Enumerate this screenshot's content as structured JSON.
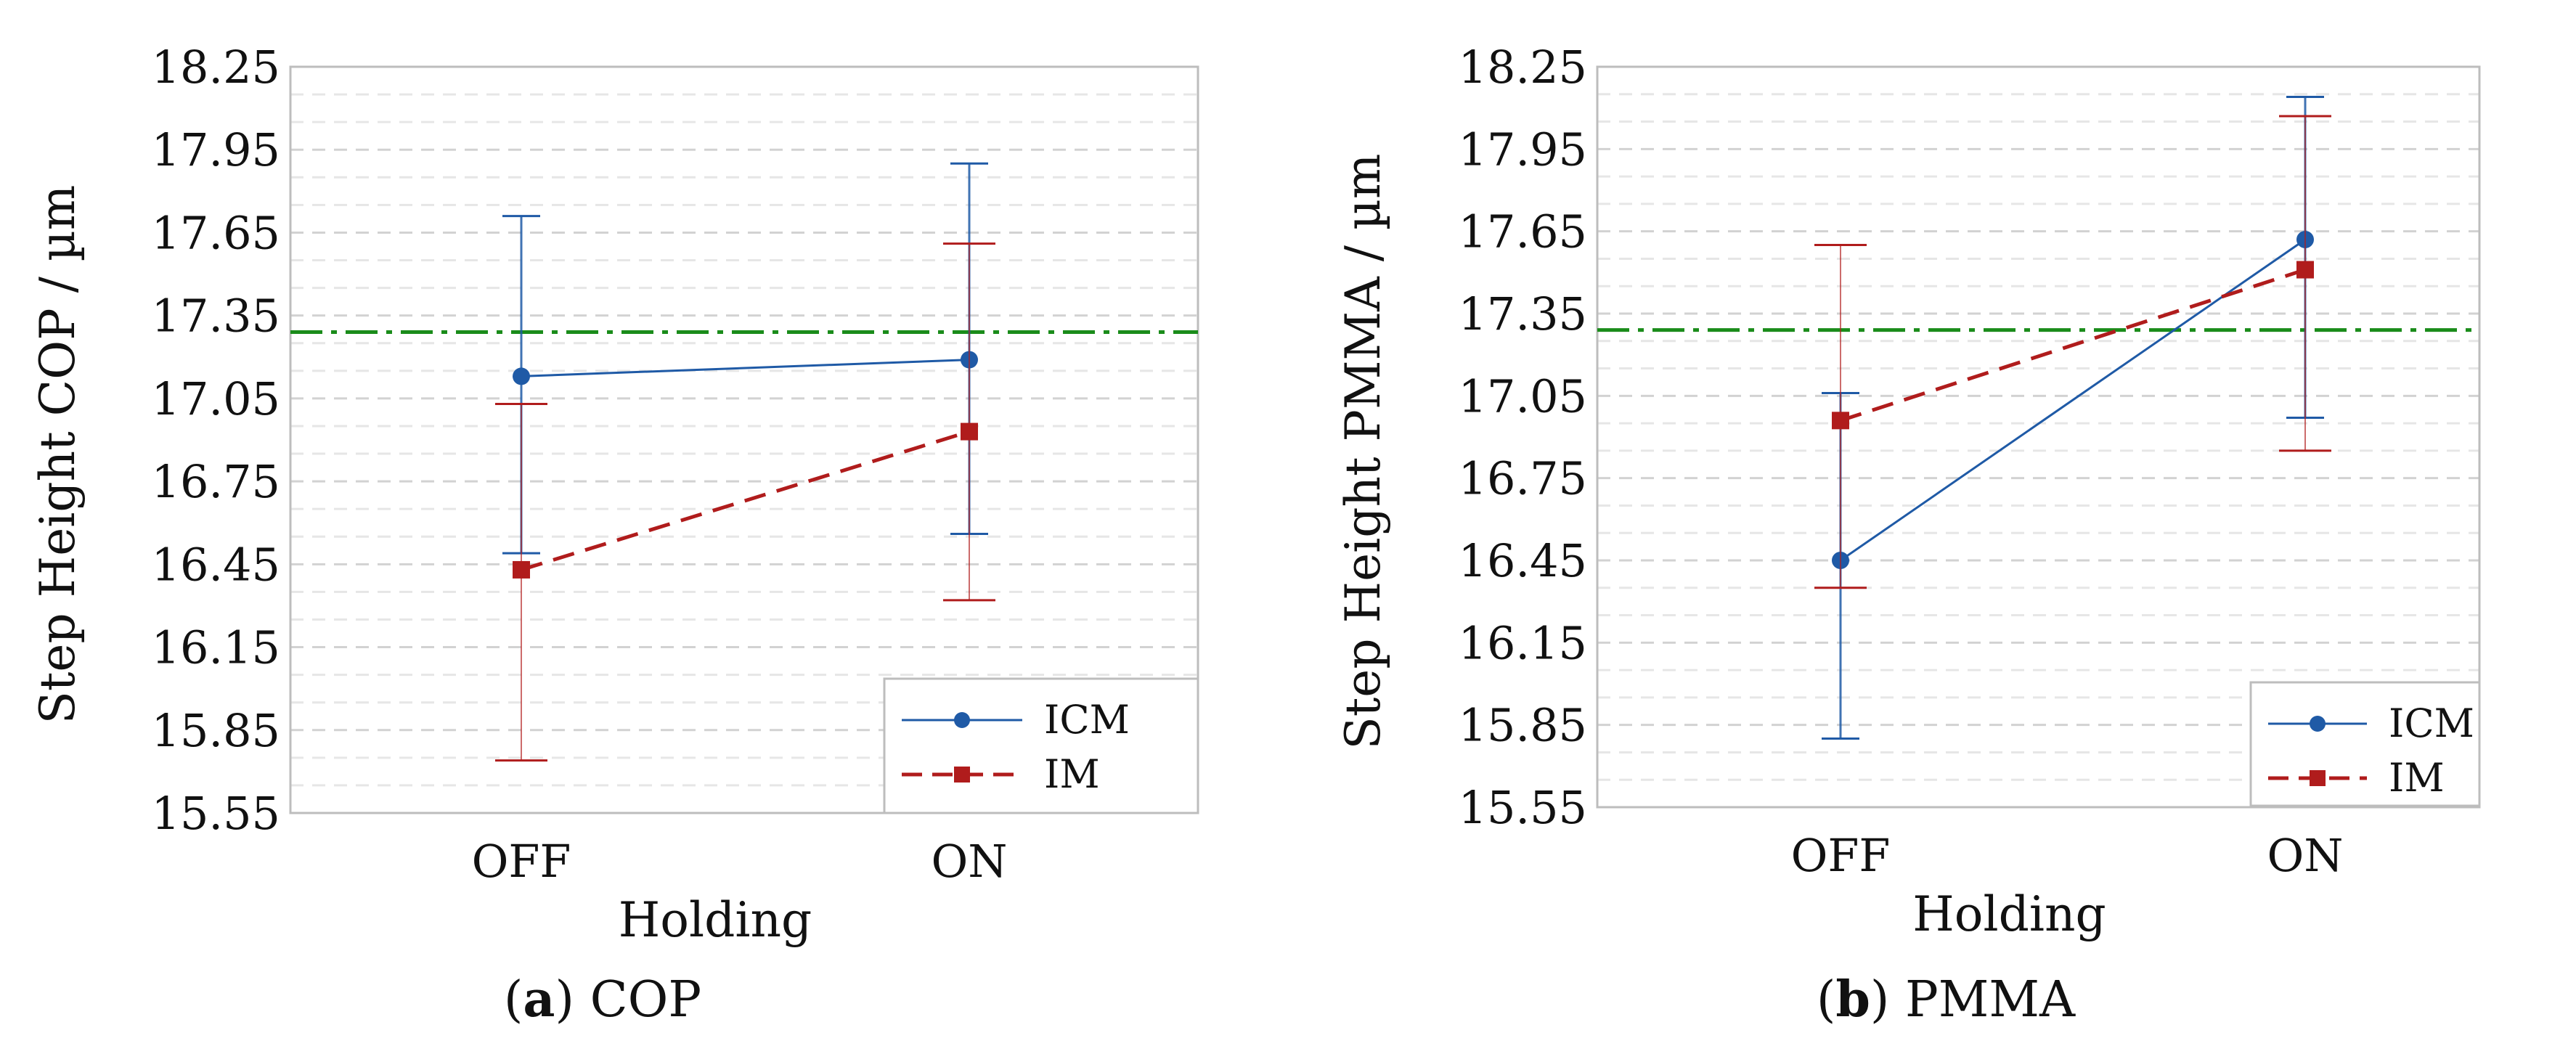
{
  "chart_data": [
    {
      "type": "line",
      "panel_label": "a",
      "caption": "COP",
      "xlabel": "Holding",
      "ylabel": "Step Height COP / µm",
      "categories": [
        "OFF",
        "ON"
      ],
      "ylim": [
        15.55,
        18.25
      ],
      "yticks": [
        "15.55",
        "15.85",
        "16.15",
        "16.45",
        "16.75",
        "17.05",
        "17.35",
        "17.65",
        "17.95",
        "18.25"
      ],
      "grid": true,
      "reference_line": {
        "y": 17.29,
        "color": "#1a8c1a",
        "style": "dash-dot"
      },
      "legend_position": "bottom-right",
      "series": [
        {
          "name": "ICM",
          "color": "#1f5aa6",
          "marker": "circle",
          "line_style": "solid",
          "values": [
            17.13,
            17.19
          ],
          "err_low": [
            16.49,
            16.56
          ],
          "err_high": [
            17.71,
            17.9
          ]
        },
        {
          "name": "IM",
          "color": "#b01c1c",
          "marker": "square",
          "line_style": "dashed",
          "values": [
            16.43,
            16.93
          ],
          "err_low": [
            15.74,
            16.32
          ],
          "err_high": [
            17.03,
            17.61
          ]
        }
      ]
    },
    {
      "type": "line",
      "panel_label": "b",
      "caption": "PMMA",
      "xlabel": "Holding",
      "ylabel": "Step Height PMMA / µm",
      "categories": [
        "OFF",
        "ON"
      ],
      "ylim": [
        15.55,
        18.25
      ],
      "yticks": [
        "15.55",
        "15.85",
        "16.15",
        "16.45",
        "16.75",
        "17.05",
        "17.35",
        "17.65",
        "17.95",
        "18.25"
      ],
      "grid": true,
      "reference_line": {
        "y": 17.29,
        "color": "#1a8c1a",
        "style": "dash-dot"
      },
      "legend_position": "bottom-right",
      "series": [
        {
          "name": "ICM",
          "color": "#1f5aa6",
          "marker": "circle",
          "line_style": "solid",
          "values": [
            16.45,
            17.62
          ],
          "err_low": [
            15.8,
            16.97
          ],
          "err_high": [
            17.06,
            18.14
          ]
        },
        {
          "name": "IM",
          "color": "#b01c1c",
          "marker": "square",
          "line_style": "dashed",
          "values": [
            16.96,
            17.51
          ],
          "err_low": [
            16.35,
            16.85
          ],
          "err_high": [
            17.6,
            18.07
          ]
        }
      ]
    }
  ]
}
